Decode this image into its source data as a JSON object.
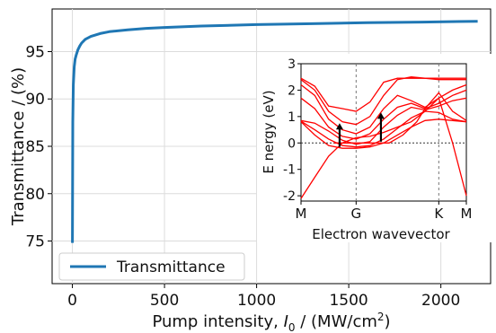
{
  "chart_data": [
    {
      "type": "line",
      "xlabel_prefix": "Pump intensity, ",
      "xlabel_var": "I",
      "xlabel_sub": "0",
      "xlabel_units": " / (MW/cm",
      "xlabel_sup": "2",
      "xlabel_close": ")",
      "ylabel": "Transmittance / (%)",
      "xlim": [
        -110,
        2270
      ],
      "ylim": [
        70.5,
        99.5
      ],
      "xticks": [
        0,
        500,
        1000,
        1500,
        2000
      ],
      "yticks": [
        75,
        80,
        85,
        90,
        95
      ],
      "grid": true,
      "legend_position": "lower-left",
      "series": [
        {
          "name": "Transmittance",
          "color": "#1f77b4",
          "x": [
            0,
            2,
            5,
            10,
            15,
            20,
            30,
            40,
            50,
            70,
            100,
            150,
            200,
            300,
            400,
            500,
            700,
            1000,
            1300,
            1600,
            1900,
            2200
          ],
          "y": [
            74.8,
            87.5,
            91.5,
            93.4,
            94.2,
            94.6,
            95.2,
            95.6,
            95.9,
            96.3,
            96.6,
            96.9,
            97.1,
            97.3,
            97.45,
            97.55,
            97.7,
            97.85,
            97.95,
            98.05,
            98.12,
            98.2
          ]
        }
      ]
    },
    {
      "type": "line",
      "title": "",
      "xlabel": "Electron wavevector",
      "ylabel": "E nergy (eV)",
      "xticks": [
        "M",
        "G",
        "K",
        "M"
      ],
      "ylim": [
        -2.2,
        3
      ],
      "yticks": [
        -2,
        -1,
        0,
        1,
        2,
        3
      ],
      "line_color": "#ff0000",
      "arrow_color": "#000000",
      "bands": [
        [
          [
            0,
            2.45
          ],
          [
            0.5,
            2.15
          ],
          [
            1,
            1.4
          ],
          [
            1.5,
            1.3
          ],
          [
            2,
            1.2
          ],
          [
            2.5,
            1.55
          ],
          [
            3,
            2.3
          ],
          [
            3.5,
            2.45
          ],
          [
            4,
            2.45
          ],
          [
            4.5,
            2.45
          ],
          [
            5,
            2.45
          ],
          [
            5.5,
            2.45
          ],
          [
            6,
            2.45
          ]
        ],
        [
          [
            0,
            2.4
          ],
          [
            0.5,
            2.0
          ],
          [
            1,
            1.2
          ],
          [
            1.5,
            0.8
          ],
          [
            2,
            0.7
          ],
          [
            2.5,
            1.0
          ],
          [
            3,
            1.8
          ],
          [
            3.5,
            2.4
          ],
          [
            4,
            2.5
          ],
          [
            4.5,
            2.45
          ],
          [
            5,
            2.4
          ],
          [
            5.5,
            2.4
          ],
          [
            6,
            2.4
          ]
        ],
        [
          [
            0,
            2.2
          ],
          [
            0.5,
            1.8
          ],
          [
            1,
            0.9
          ],
          [
            1.5,
            0.5
          ],
          [
            2,
            0.35
          ],
          [
            2.5,
            0.6
          ],
          [
            3,
            1.3
          ],
          [
            3.5,
            1.8
          ],
          [
            4,
            1.6
          ],
          [
            4.5,
            1.35
          ],
          [
            5,
            1.7
          ],
          [
            5.5,
            2.0
          ],
          [
            6,
            2.2
          ]
        ],
        [
          [
            0,
            1.7
          ],
          [
            0.5,
            1.3
          ],
          [
            1,
            0.6
          ],
          [
            1.5,
            0.25
          ],
          [
            2,
            0.15
          ],
          [
            2.5,
            0.35
          ],
          [
            3,
            0.9
          ],
          [
            3.5,
            1.35
          ],
          [
            4,
            1.5
          ],
          [
            4.5,
            1.3
          ],
          [
            5,
            1.5
          ],
          [
            5.5,
            1.8
          ],
          [
            6,
            2.0
          ]
        ],
        [
          [
            0,
            0.85
          ],
          [
            0.5,
            0.75
          ],
          [
            1,
            0.45
          ],
          [
            1.5,
            0.1
          ],
          [
            2,
            -0.05
          ],
          [
            2.5,
            0.05
          ],
          [
            3,
            0.6
          ],
          [
            3.5,
            1.05
          ],
          [
            4,
            1.35
          ],
          [
            4.5,
            1.25
          ],
          [
            5,
            1.4
          ],
          [
            5.5,
            1.6
          ],
          [
            6,
            1.7
          ]
        ],
        [
          [
            0,
            0.82
          ],
          [
            0.5,
            0.5
          ],
          [
            1,
            0.15
          ],
          [
            1.5,
            -0.1
          ],
          [
            2,
            -0.15
          ],
          [
            2.5,
            -0.1
          ],
          [
            3,
            0.15
          ],
          [
            3.5,
            0.55
          ],
          [
            4,
            0.95
          ],
          [
            4.5,
            1.2
          ],
          [
            5,
            1.15
          ],
          [
            5.5,
            0.9
          ],
          [
            6,
            0.8
          ]
        ],
        [
          [
            0,
            0.8
          ],
          [
            0.5,
            0.3
          ],
          [
            1,
            -0.1
          ],
          [
            1.5,
            -0.2
          ],
          [
            2,
            -0.2
          ],
          [
            2.5,
            -0.15
          ],
          [
            3,
            0.0
          ],
          [
            3.5,
            0.3
          ],
          [
            4,
            0.6
          ],
          [
            4.5,
            0.85
          ],
          [
            5,
            0.9
          ],
          [
            5.5,
            0.85
          ],
          [
            6,
            0.8
          ]
        ],
        [
          [
            0,
            -2.1
          ],
          [
            0.5,
            -1.3
          ],
          [
            1,
            -0.5
          ],
          [
            1.5,
            0.0
          ],
          [
            2,
            0.2
          ],
          [
            2.5,
            0.25
          ],
          [
            3,
            0.4
          ],
          [
            3.5,
            0.6
          ],
          [
            4,
            0.8
          ],
          [
            4.5,
            1.2
          ],
          [
            5,
            1.7
          ],
          [
            5.5,
            0.0
          ],
          [
            6,
            -2.0
          ]
        ],
        [
          [
            1.2,
            0.0
          ],
          [
            2.5,
            0.0
          ],
          [
            3.2,
            0.0
          ],
          [
            3.7,
            0.3
          ],
          [
            4.2,
            0.8
          ],
          [
            4.5,
            1.3
          ],
          [
            5,
            1.9
          ],
          [
            5.5,
            1.2
          ],
          [
            6,
            0.85
          ]
        ]
      ],
      "arrows": [
        {
          "x": 1.4,
          "from": -0.15,
          "to": 0.75
        },
        {
          "x": 2.9,
          "from": 0.05,
          "to": 1.15
        }
      ]
    }
  ]
}
